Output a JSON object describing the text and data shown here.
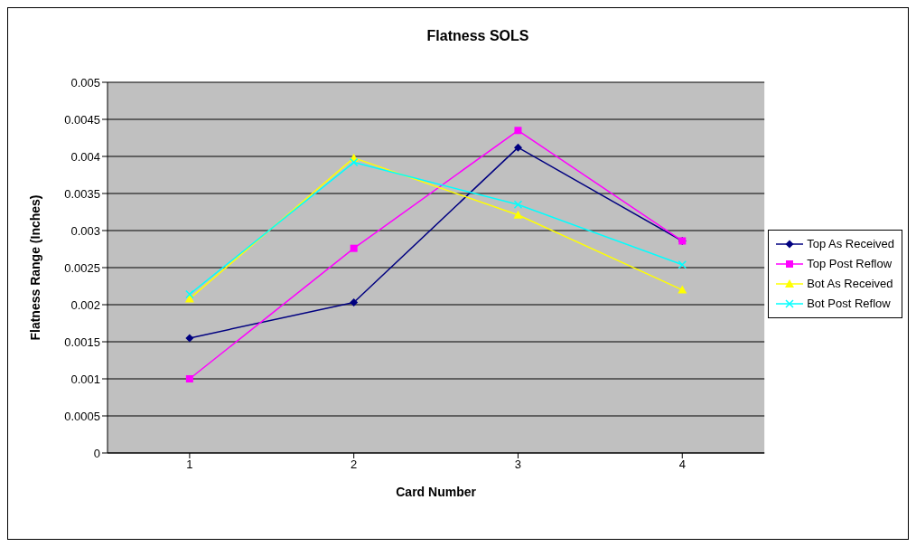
{
  "chart_data": {
    "type": "line",
    "title": "Flatness SOLS",
    "xlabel": "Card Number",
    "ylabel": "Flatness Range (Inches)",
    "categories": [
      "1",
      "2",
      "3",
      "4"
    ],
    "series": [
      {
        "name": "Top As Received",
        "color": "#000080",
        "marker": "diamond",
        "values": [
          0.00155,
          0.00203,
          0.00412,
          0.00286
        ]
      },
      {
        "name": "Top Post Reflow",
        "color": "#ff00ff",
        "marker": "square",
        "values": [
          0.001,
          0.00276,
          0.00435,
          0.00286
        ]
      },
      {
        "name": "Bot As Received",
        "color": "#ffff00",
        "marker": "triangle",
        "values": [
          0.00208,
          0.00398,
          0.00321,
          0.0022
        ]
      },
      {
        "name": "Bot Post Reflow",
        "color": "#00ffff",
        "marker": "cross",
        "values": [
          0.00214,
          0.00392,
          0.00335,
          0.00254
        ]
      }
    ],
    "ylim": [
      0,
      0.005
    ],
    "yticks": [
      0,
      0.0005,
      0.001,
      0.0015,
      0.002,
      0.0025,
      0.003,
      0.0035,
      0.004,
      0.0045,
      0.005
    ],
    "grid": "y",
    "legend": "right"
  }
}
